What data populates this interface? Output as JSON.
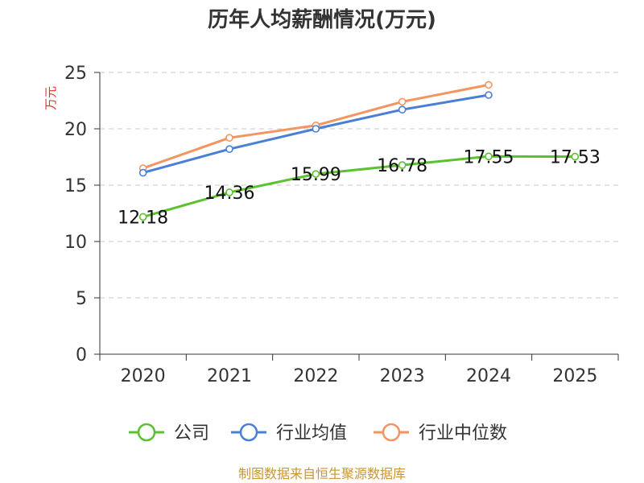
{
  "chart_data": {
    "type": "line",
    "title": "历年人均薪酬情况(万元)",
    "ylabel": "万元",
    "xlabel": "",
    "categories": [
      "2020",
      "2021",
      "2022",
      "2023",
      "2024",
      "2025"
    ],
    "ylim": [
      0,
      25
    ],
    "yticks": [
      0,
      5,
      10,
      15,
      20,
      25
    ],
    "grid": true,
    "legend_position": "bottom",
    "series": [
      {
        "name": "公司",
        "color": "#5cc12e",
        "values": [
          12.18,
          14.36,
          15.99,
          16.78,
          17.55,
          17.53
        ],
        "labels": [
          "12.18",
          "14.36",
          "15.99",
          "16.78",
          "17.55",
          "17.53"
        ]
      },
      {
        "name": "行业均值",
        "color": "#4a7fd6",
        "values": [
          16.1,
          18.2,
          20.0,
          21.7,
          23.0,
          null
        ]
      },
      {
        "name": "行业中位数",
        "color": "#f39562",
        "values": [
          16.5,
          19.2,
          20.3,
          22.4,
          23.9,
          null
        ]
      }
    ],
    "source": "制图数据来自恒生聚源数据库",
    "ylabel_color": "#e03030",
    "source_color": "#c8962e"
  }
}
